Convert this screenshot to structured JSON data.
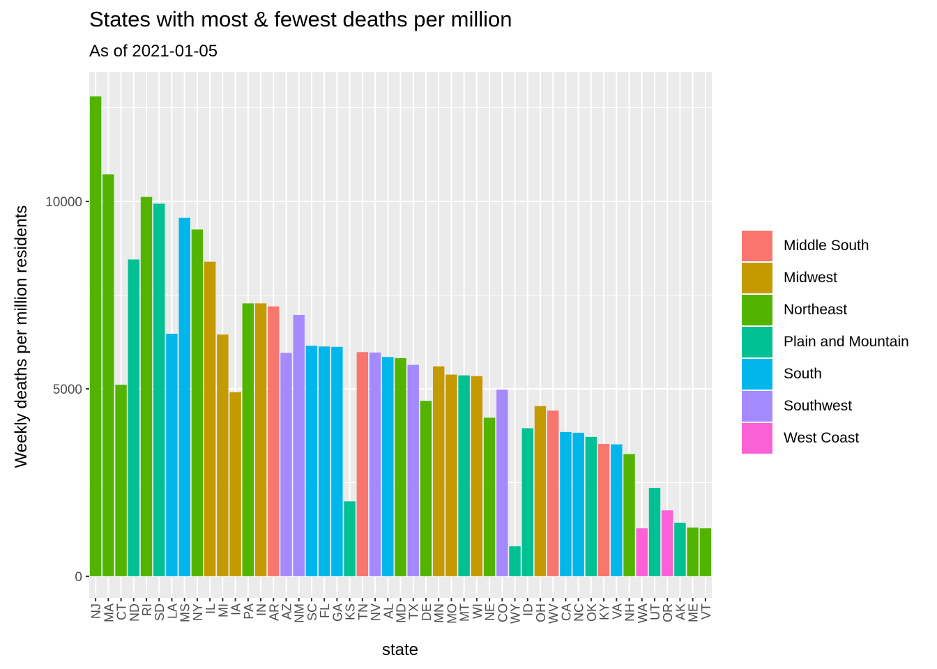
{
  "chart_data": {
    "type": "bar",
    "title": "States with most & fewest deaths per million",
    "subtitle": "As of  2021-01-05",
    "xlabel": "state",
    "ylabel": "Weekly deaths per million residents",
    "ylim": [
      0,
      13000
    ],
    "yticks": [
      0,
      5000,
      10000
    ],
    "grid": true,
    "legend_position": "right",
    "regions": [
      {
        "name": "Middle South",
        "color": "#F8766D"
      },
      {
        "name": "Midwest",
        "color": "#C49A00"
      },
      {
        "name": "Northeast",
        "color": "#53B400"
      },
      {
        "name": "Plain and Mountain",
        "color": "#00C094"
      },
      {
        "name": "South",
        "color": "#00B6EB"
      },
      {
        "name": "Southwest",
        "color": "#A58AFF"
      },
      {
        "name": "West Coast",
        "color": "#FB61D7"
      }
    ],
    "categories": [
      "NJ",
      "MA",
      "CT",
      "ND",
      "RI",
      "SD",
      "LA",
      "MS",
      "NY",
      "IL",
      "MI",
      "IA",
      "PA",
      "IN",
      "AR",
      "AZ",
      "NM",
      "SC",
      "FL",
      "GA",
      "KS",
      "TN",
      "NV",
      "AL",
      "MD",
      "TX",
      "DE",
      "MN",
      "MO",
      "MT",
      "WI",
      "NE",
      "CO",
      "WY",
      "ID",
      "OH",
      "WV",
      "CA",
      "NC",
      "OK",
      "KY",
      "VA",
      "NH",
      "WA",
      "UT",
      "OR",
      "AK",
      "ME",
      "VT"
    ],
    "values": [
      12800,
      10720,
      5110,
      8450,
      10120,
      9940,
      6470,
      9560,
      9250,
      8390,
      6450,
      4910,
      7280,
      7280,
      7200,
      5960,
      6970,
      6150,
      6130,
      6120,
      2000,
      5980,
      5970,
      5850,
      5820,
      5640,
      4680,
      5600,
      5380,
      5360,
      5340,
      4230,
      4980,
      800,
      3950,
      4540,
      4420,
      3850,
      3830,
      3720,
      3530,
      3520,
      3260,
      1280,
      2360,
      1760,
      1430,
      1300,
      1280
    ],
    "regions_by_bar": [
      "Northeast",
      "Northeast",
      "Northeast",
      "Plain and Mountain",
      "Northeast",
      "Plain and Mountain",
      "South",
      "South",
      "Northeast",
      "Midwest",
      "Midwest",
      "Midwest",
      "Northeast",
      "Midwest",
      "Middle South",
      "Southwest",
      "Southwest",
      "South",
      "South",
      "South",
      "Plain and Mountain",
      "Middle South",
      "Southwest",
      "South",
      "Northeast",
      "Southwest",
      "Northeast",
      "Midwest",
      "Midwest",
      "Plain and Mountain",
      "Midwest",
      "Northeast",
      "Southwest",
      "Plain and Mountain",
      "Plain and Mountain",
      "Midwest",
      "Middle South",
      "South",
      "South",
      "Plain and Mountain",
      "Middle South",
      "South",
      "Northeast",
      "West Coast",
      "Plain and Mountain",
      "West Coast",
      "Plain and Mountain",
      "Northeast",
      "Northeast"
    ]
  }
}
